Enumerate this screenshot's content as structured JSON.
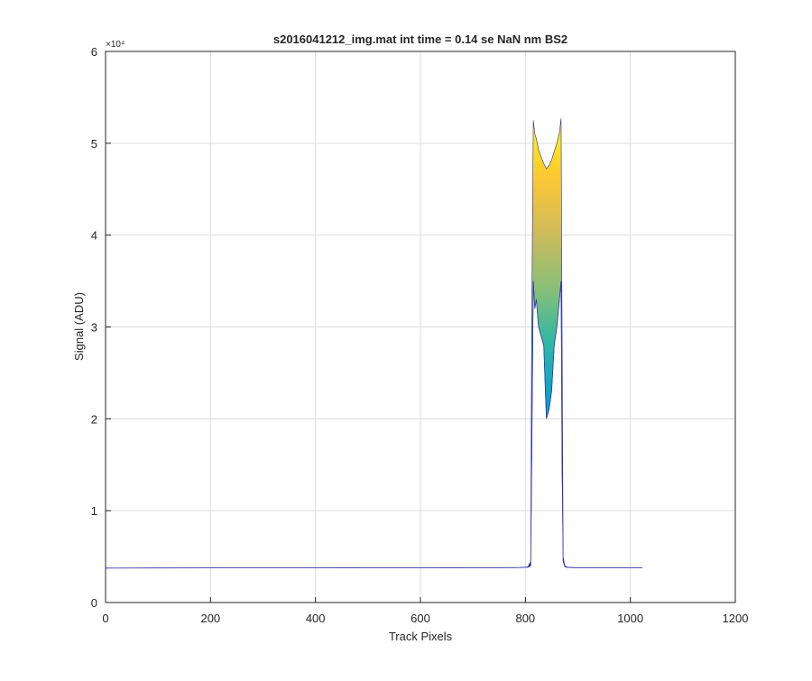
{
  "chart_data": {
    "type": "area",
    "title": "s2016041212_img.mat int time = 0.14 se  NaN nm BS2",
    "xlabel": "Track Pixels",
    "ylabel": "Signal (ADU)",
    "y_exponent_label": "×10⁴",
    "xlim": [
      0,
      1200
    ],
    "ylim": [
      0,
      6
    ],
    "x_ticks": [
      0,
      200,
      400,
      600,
      800,
      1000,
      1200
    ],
    "y_ticks": [
      0,
      1,
      2,
      3,
      4,
      5,
      6
    ],
    "grid": true,
    "colormap": "parula",
    "series": [
      {
        "x": [
          0,
          100,
          200,
          300,
          400,
          500,
          600,
          700,
          760,
          790,
          800,
          805,
          810,
          812,
          815,
          818,
          821,
          825,
          830,
          835,
          840,
          845,
          850,
          855,
          860,
          865,
          868,
          870,
          872,
          875,
          880,
          900,
          950,
          1000,
          1023
        ],
        "upper": [
          0.375,
          0.376,
          0.377,
          0.377,
          0.377,
          0.378,
          0.378,
          0.379,
          0.38,
          0.382,
          0.385,
          0.39,
          0.45,
          3.0,
          5.25,
          5.1,
          5.05,
          4.93,
          4.85,
          4.78,
          4.72,
          4.76,
          4.82,
          4.91,
          5.0,
          5.12,
          5.27,
          3.0,
          0.5,
          0.4,
          0.385,
          0.38,
          0.378,
          0.377,
          0.377
        ],
        "lower": [
          0.375,
          0.376,
          0.377,
          0.377,
          0.377,
          0.378,
          0.378,
          0.379,
          0.38,
          0.381,
          0.383,
          0.385,
          0.4,
          1.5,
          3.5,
          3.2,
          3.3,
          3.0,
          2.9,
          2.8,
          2.0,
          2.1,
          2.3,
          2.8,
          3.0,
          3.3,
          3.5,
          1.5,
          0.45,
          0.39,
          0.382,
          0.379,
          0.378,
          0.377,
          0.377
        ]
      }
    ]
  }
}
